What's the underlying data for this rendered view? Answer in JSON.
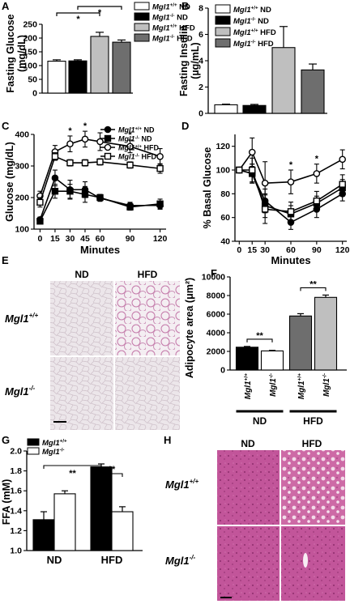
{
  "chart_data": [
    {
      "panel": "A",
      "type": "bar",
      "ylabel": "Fasting Glucose\n(mg/dL)",
      "ylim": [
        0,
        250
      ],
      "yticks": [
        0,
        50,
        100,
        150,
        200,
        250
      ],
      "categories": [
        "Mgl1+/+ ND",
        "Mgl1-/- ND",
        "Mgl1+/+ HFD",
        "Mgl1-/- HFD"
      ],
      "values": [
        116,
        117,
        206,
        185
      ],
      "errors": [
        5,
        4,
        15,
        8
      ],
      "fills": [
        "#ffffff",
        "#000000",
        "#bfbfbf",
        "#6e6e6e"
      ],
      "significance": [
        {
          "from": 0,
          "to": 2,
          "label": "*"
        },
        {
          "from": 1,
          "to": 3,
          "label": "*"
        }
      ],
      "legend": [
        {
          "base": "Mgl1",
          "sup": "+/+",
          "rest": " ND"
        },
        {
          "base": "Mgl1",
          "sup": "-/-",
          "rest": " ND"
        },
        {
          "base": "Mgl1",
          "sup": "+/+",
          "rest": " HFD"
        },
        {
          "base": "Mgl1",
          "sup": "-/-",
          "rest": " HFD"
        }
      ]
    },
    {
      "panel": "B",
      "type": "bar",
      "ylabel": "Fasting Insulin\n(µg/mL)",
      "ylim": [
        0,
        8
      ],
      "yticks": [
        0,
        2,
        4,
        6,
        8
      ],
      "categories": [
        "Mgl1+/+ ND",
        "Mgl1-/- ND",
        "Mgl1+/+ HFD",
        "Mgl1-/- HFD"
      ],
      "values": [
        0.65,
        0.6,
        5.0,
        3.3
      ],
      "errors": [
        0.05,
        0.08,
        1.6,
        0.45
      ],
      "fills": [
        "#ffffff",
        "#000000",
        "#bfbfbf",
        "#6e6e6e"
      ],
      "legend": [
        {
          "base": "Mgl1",
          "sup": "+/+",
          "rest": " ND"
        },
        {
          "base": "Mgl1",
          "sup": "-/-",
          "rest": " ND"
        },
        {
          "base": "Mgl1",
          "sup": "+/+",
          "rest": " HFD"
        },
        {
          "base": "Mgl1",
          "sup": "-/-",
          "rest": " HFD"
        }
      ]
    },
    {
      "panel": "C",
      "type": "line",
      "xlabel": "Minutes",
      "ylabel": "Glucose (mg/dL)",
      "x": [
        0,
        15,
        30,
        45,
        60,
        90,
        120
      ],
      "ylim": [
        100,
        400
      ],
      "yticks": [
        100,
        200,
        300,
        400
      ],
      "series": [
        {
          "name": "Mgl1+/+ ND",
          "marker": "circle",
          "fill": "#000000",
          "values": [
            130,
            262,
            225,
            225,
            198,
            175,
            175
          ],
          "errors": [
            8,
            25,
            30,
            25,
            10,
            10,
            12
          ]
        },
        {
          "name": "Mgl1-/- ND",
          "marker": "square",
          "fill": "#000000",
          "values": [
            125,
            220,
            220,
            210,
            200,
            170,
            180
          ],
          "errors": [
            8,
            22,
            22,
            25,
            10,
            10,
            15
          ]
        },
        {
          "name": "Mgl1+/+ HFD",
          "marker": "circle",
          "fill": "#ffffff",
          "values": [
            205,
            345,
            370,
            385,
            377,
            362,
            330
          ],
          "errors": [
            15,
            20,
            25,
            25,
            28,
            20,
            25
          ]
        },
        {
          "name": "Mgl1-/- HFD",
          "marker": "square",
          "fill": "#ffffff",
          "values": [
            185,
            330,
            310,
            310,
            313,
            303,
            292
          ],
          "errors": [
            15,
            12,
            10,
            10,
            10,
            10,
            15
          ]
        }
      ],
      "stars": [
        30,
        45,
        90
      ],
      "legend": [
        {
          "base": "Mgl1",
          "sup": "+/+",
          "rest": " ND"
        },
        {
          "base": "Mgl1",
          "sup": "-/-",
          "rest": " ND"
        },
        {
          "base": "Mgl1",
          "sup": "+/+",
          "rest": " HFD"
        },
        {
          "base": "Mgl1",
          "sup": "-/-",
          "rest": " HFD"
        }
      ]
    },
    {
      "panel": "D",
      "type": "line",
      "xlabel": "Minutes",
      "ylabel": "% Basal Glucose",
      "x": [
        0,
        15,
        30,
        60,
        90,
        120
      ],
      "ylim": [
        40,
        130
      ],
      "yticks": [
        40,
        60,
        80,
        100,
        120
      ],
      "series": [
        {
          "name": "Mgl1+/+ ND",
          "marker": "circle",
          "fill": "#000000",
          "values": [
            100,
            97,
            74,
            56,
            67,
            80
          ],
          "errors": [
            0,
            8,
            10,
            6,
            7,
            6
          ]
        },
        {
          "name": "Mgl1-/- ND",
          "marker": "square",
          "fill": "#000000",
          "values": [
            100,
            97,
            70,
            63,
            72,
            85
          ],
          "errors": [
            0,
            8,
            10,
            7,
            6,
            7
          ]
        },
        {
          "name": "Mgl1+/+ HFD",
          "marker": "circle",
          "fill": "#ffffff",
          "values": [
            100,
            115,
            89,
            90,
            97,
            109
          ],
          "errors": [
            0,
            12,
            18,
            10,
            8,
            8
          ]
        },
        {
          "name": "Mgl1-/- HFD",
          "marker": "square",
          "fill": "#ffffff",
          "values": [
            100,
            100,
            67,
            65,
            74,
            88
          ],
          "errors": [
            0,
            10,
            12,
            8,
            8,
            8
          ]
        }
      ],
      "stars": [
        60,
        90
      ]
    },
    {
      "panel": "F",
      "type": "bar",
      "ylabel": "Adipocyte area (μm²)",
      "ylim": [
        0,
        10000
      ],
      "yticks": [
        0,
        2000,
        4000,
        6000,
        8000,
        10000
      ],
      "categories": [
        "Mgl1+/+",
        "Mgl1-/-",
        "Mgl1+/+",
        "Mgl1-/-"
      ],
      "tick_labels": [
        {
          "base": "Mgl1",
          "sup": "+/+"
        },
        {
          "base": "Mgl1",
          "sup": "-/-"
        },
        {
          "base": "Mgl1",
          "sup": "+/+"
        },
        {
          "base": "Mgl1",
          "sup": "-/-"
        }
      ],
      "groups": [
        {
          "label": "ND",
          "from": 0,
          "to": 1
        },
        {
          "label": "HFD",
          "from": 2,
          "to": 3
        }
      ],
      "values": [
        2450,
        2050,
        5800,
        7800
      ],
      "errors": [
        80,
        60,
        250,
        250
      ],
      "fills": [
        "#000000",
        "#ffffff",
        "#6e6e6e",
        "#bfbfbf"
      ],
      "significance": [
        {
          "from": 0,
          "to": 1,
          "label": "**"
        },
        {
          "from": 2,
          "to": 3,
          "label": "**"
        }
      ]
    },
    {
      "panel": "G",
      "type": "bar",
      "ylabel": "FFA (mM)",
      "ylim": [
        1.0,
        2.0
      ],
      "yticks": [
        1.0,
        1.2,
        1.4,
        1.6,
        1.8,
        2.0
      ],
      "categories": [
        "ND",
        "HFD"
      ],
      "series": [
        {
          "name": "Mgl1+/+",
          "fill": "#000000",
          "values": [
            1.31,
            1.84
          ],
          "errors": [
            0.08,
            0.03
          ]
        },
        {
          "name": "Mgl1-/-",
          "fill": "#ffffff",
          "values": [
            1.57,
            1.39
          ],
          "errors": [
            0.03,
            0.05
          ]
        }
      ],
      "significance": [
        {
          "label": "**",
          "span": "ND Mgl1+/+ vs HFD Mgl1+/+"
        },
        {
          "label": "**",
          "span": "HFD Mgl1+/+ vs HFD Mgl1-/-"
        }
      ],
      "legend": [
        {
          "base": "Mgl1",
          "sup": "+/+",
          "rest": ""
        },
        {
          "base": "Mgl1",
          "sup": "-/-",
          "rest": ""
        }
      ]
    }
  ],
  "panels": {
    "A": "A",
    "B": "B",
    "C": "C",
    "D": "D",
    "E": "E",
    "F": "F",
    "G": "G",
    "H": "H"
  },
  "micrographs": {
    "E": {
      "col_labels": [
        "ND",
        "HFD"
      ],
      "row_labels": [
        {
          "base": "Mgl1",
          "sup": "+/+"
        },
        {
          "base": "Mgl1",
          "sup": "-/-"
        }
      ]
    },
    "H": {
      "col_labels": [
        "ND",
        "HFD"
      ],
      "row_labels": [
        {
          "base": "Mgl1",
          "sup": "+/+"
        },
        {
          "base": "Mgl1",
          "sup": "-/-"
        }
      ]
    }
  },
  "colors": {
    "he_light": "#e8dde4",
    "he_pink": "#b0518d",
    "he_dark": "#c0468e"
  }
}
